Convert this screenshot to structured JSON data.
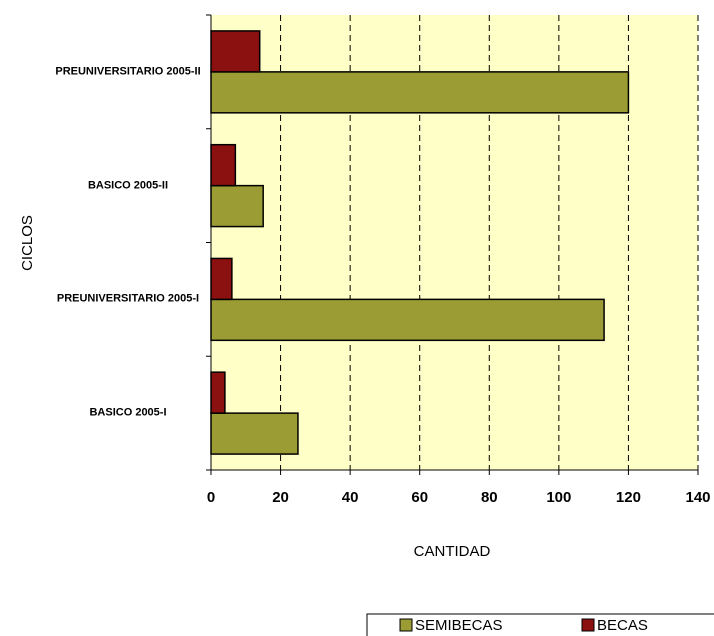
{
  "chart_data": {
    "type": "barh",
    "categories": [
      "BASICO 2005-I",
      "PREUNIVERSITARIO 2005-I",
      "BASICO 2005-II",
      "PREUNIVERSITARIO 2005-II"
    ],
    "series": [
      {
        "name": "SEMIBECAS",
        "color": "#9c9c34",
        "values": [
          25,
          113,
          15,
          120
        ]
      },
      {
        "name": "BECAS",
        "color": "#8b1010",
        "values": [
          4,
          6,
          7,
          14
        ]
      }
    ],
    "xlim": [
      0,
      140
    ],
    "xticks": [
      0,
      20,
      40,
      60,
      80,
      100,
      120,
      140
    ],
    "xlabel": "CANTIDAD",
    "ylabel": "CICLOS",
    "grid": true,
    "legend": "bottom"
  }
}
